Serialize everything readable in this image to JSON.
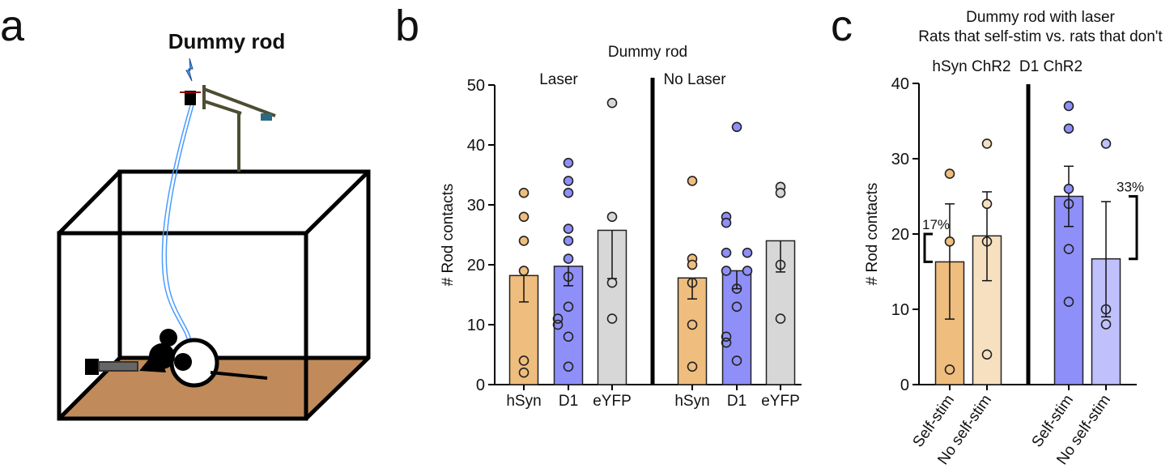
{
  "panel_labels": {
    "a": "a",
    "b": "b",
    "c": "c"
  },
  "panel_a": {
    "title": "Dummy rod"
  },
  "colors": {
    "hSyn": "#efbd7d",
    "hSyn_light": "#f6e0c0",
    "D1": "#8f8ff9",
    "D1_light": "#c0c0fd",
    "eYFP": "#d7d7d7",
    "sand": "#c08a5a"
  },
  "chart_data": [
    {
      "type": "bar",
      "title": "Dummy rod",
      "ylabel": "# Rod contacts",
      "ylim": [
        0,
        50
      ],
      "yticks": [
        0,
        10,
        20,
        30,
        40,
        50
      ],
      "groups": [
        "Laser",
        "No Laser"
      ],
      "categories": [
        "hSyn",
        "D1",
        "eYFP",
        "hSyn",
        "D1",
        "eYFP"
      ],
      "bars": [
        {
          "group": "Laser",
          "label": "hSyn",
          "color": "hSyn",
          "mean": 18.2,
          "err_low": 13.8,
          "err_high": 18.2,
          "points": [
            32,
            28,
            24,
            19,
            4,
            2
          ]
        },
        {
          "group": "Laser",
          "label": "D1",
          "color": "D1",
          "mean": 19.75,
          "err_low": 16.5,
          "err_high": 19.75,
          "points": [
            37,
            34,
            32,
            26,
            24,
            21,
            18,
            13,
            10,
            11,
            8,
            3
          ]
        },
        {
          "group": "Laser",
          "label": "eYFP",
          "color": "eYFP",
          "mean": 25.75,
          "err_low": 17.7,
          "err_high": 25.75,
          "points": [
            47,
            28,
            17,
            11
          ]
        },
        {
          "group": "No Laser",
          "label": "hSyn",
          "color": "hSyn",
          "mean": 17.8,
          "err_low": 14.3,
          "err_high": 17.8,
          "points": [
            34,
            21,
            20,
            17,
            10,
            3
          ]
        },
        {
          "group": "No Laser",
          "label": "D1",
          "color": "D1",
          "mean": 19.0,
          "err_low": 16.0,
          "err_high": 19.0,
          "points": [
            43,
            28,
            27,
            22,
            22,
            19,
            19,
            16,
            13,
            8,
            7,
            4
          ]
        },
        {
          "group": "No Laser",
          "label": "eYFP",
          "color": "eYFP",
          "mean": 24.0,
          "err_low": 18.8,
          "err_high": 24.0,
          "points": [
            33,
            32,
            20,
            11
          ]
        }
      ]
    },
    {
      "type": "bar",
      "title": "Dummy rod with laser",
      "subtitle": "Rats that self-stim vs. rats that don't",
      "ylabel": "# Rod contacts",
      "ylim": [
        0,
        40
      ],
      "yticks": [
        0,
        10,
        20,
        30,
        40
      ],
      "groups": [
        "hSyn ChR2",
        "D1 ChR2"
      ],
      "categories": [
        "Self-stim",
        "No self-stim",
        "Self-stim",
        "No self-stim"
      ],
      "bars": [
        {
          "group": "hSyn ChR2",
          "label": "Self-stim",
          "color": "hSyn",
          "mean": 16.3,
          "err_low": 8.7,
          "err_high": 24.0,
          "points": [
            28,
            19,
            2
          ]
        },
        {
          "group": "hSyn ChR2",
          "label": "No self-stim",
          "color": "hSyn_light",
          "mean": 19.75,
          "err_low": 13.8,
          "err_high": 25.6,
          "points": [
            32,
            24,
            19,
            4
          ]
        },
        {
          "group": "D1 ChR2",
          "label": "Self-stim",
          "color": "D1",
          "mean": 25.0,
          "err_low": 21.0,
          "err_high": 29.0,
          "points": [
            37,
            34,
            26,
            24,
            18,
            11
          ]
        },
        {
          "group": "D1 ChR2",
          "label": "No self-stim",
          "color": "D1_light",
          "mean": 16.7,
          "err_low": 9.0,
          "err_high": 24.3,
          "points": [
            32,
            10,
            8
          ]
        }
      ],
      "annotations": [
        {
          "text": "17%",
          "bracket": [
            16.3,
            20
          ]
        },
        {
          "text": "33%",
          "bracket": [
            16.7,
            25
          ]
        }
      ]
    }
  ]
}
